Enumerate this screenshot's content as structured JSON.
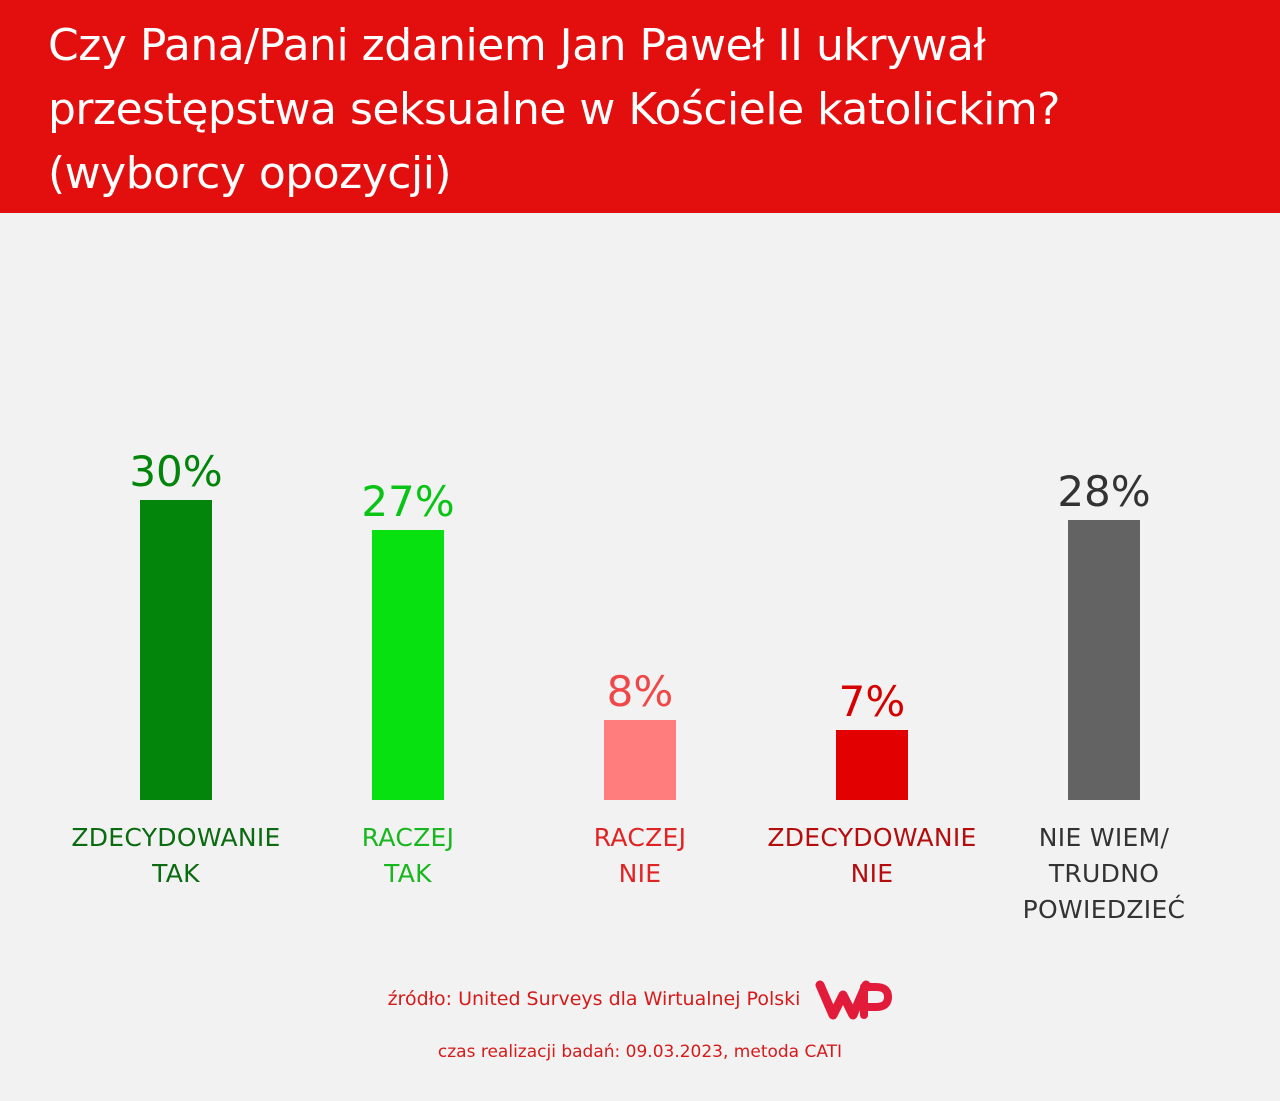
{
  "header": {
    "title_lines": [
      "Czy Pana/Pani zdaniem Jan Paweł II ukrywał",
      "przestępstwa seksualne w Kościele katolickim?",
      "(wyborcy opozycji)"
    ],
    "background": "#e30f0f"
  },
  "chart_data": {
    "type": "bar",
    "title": "Czy Pana/Pani zdaniem Jan Paweł II ukrywał przestępstwa seksualne w Kościele katolickim? (wyborcy opozycji)",
    "categories": [
      [
        "ZDECYDOWANIE",
        "TAK"
      ],
      [
        "RACZEJ",
        "TAK"
      ],
      [
        "RACZEJ",
        "NIE"
      ],
      [
        "ZDECYDOWANIE",
        "NIE"
      ],
      [
        "NIE WIEM/",
        "TRUDNO",
        "POWIEDZIEĆ"
      ]
    ],
    "values": [
      30,
      27,
      8,
      7,
      28
    ],
    "value_labels": [
      "30%",
      "27%",
      "8%",
      "7%",
      "28%"
    ],
    "bar_colors": [
      "#03850c",
      "#06e10f",
      "#ff7d7d",
      "#e30000",
      "#636363"
    ],
    "value_label_colors": [
      "#03850c",
      "#0ac415",
      "#f04848",
      "#d60000",
      "#333333"
    ],
    "category_label_colors": [
      "#0b6b10",
      "#19b71f",
      "#e02424",
      "#b50d0d",
      "#333333"
    ],
    "unit": "%",
    "ylim": [
      0,
      30
    ],
    "grid": false,
    "legend": "none"
  },
  "footer": {
    "source": "źródło: United Surveys dla Wirtualnej Polski",
    "logo": "WP",
    "date_method": "czas realizacji badań: 09.03.2023, metoda CATI",
    "accent": "#d61a1a",
    "logo_color": "#e31b3a"
  }
}
